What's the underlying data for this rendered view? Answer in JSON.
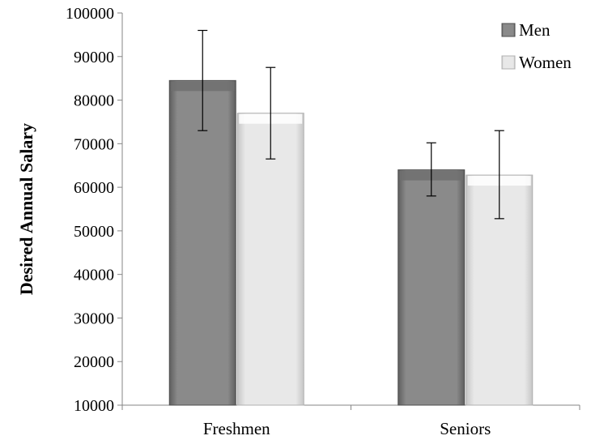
{
  "chart_data": {
    "type": "bar",
    "title": "",
    "xlabel": "",
    "ylabel": "Desired Annual Salary",
    "ylim": [
      10000,
      100000
    ],
    "yticks": [
      10000,
      20000,
      30000,
      40000,
      50000,
      60000,
      70000,
      80000,
      90000,
      100000
    ],
    "categories": [
      "Freshmen",
      "Seniors"
    ],
    "series": [
      {
        "name": "Men",
        "color": "#808080",
        "values": [
          84500,
          64000
        ],
        "error_low": [
          73000,
          58000
        ],
        "error_high": [
          96000,
          70200
        ]
      },
      {
        "name": "Women",
        "color": "#e3e3e3",
        "values": [
          77000,
          62800
        ],
        "error_low": [
          66500,
          52800
        ],
        "error_high": [
          87500,
          73000
        ]
      }
    ],
    "grid": false,
    "legend": "top-right",
    "error_bars": true
  }
}
